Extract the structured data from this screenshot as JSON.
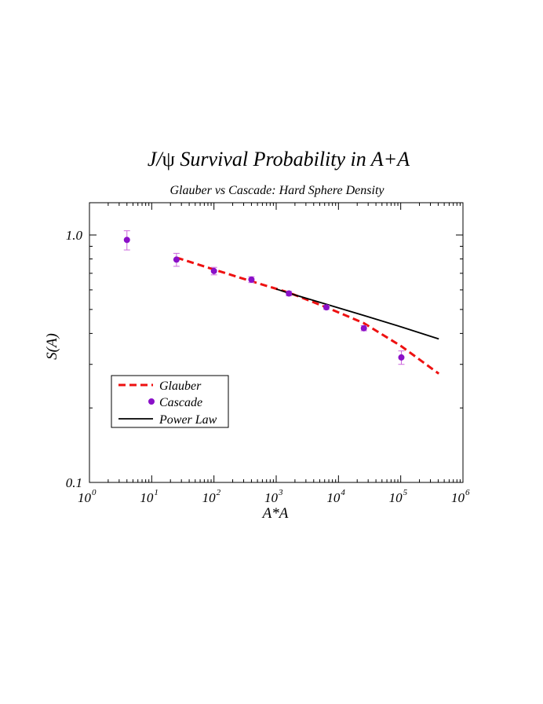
{
  "chart_data": {
    "type": "scatter",
    "title": "J/ψ Survival Probability in A+A",
    "title_main": "J/",
    "title_psi": "ψ",
    "title_rest": " Survival Probability in A+A",
    "subtitle": "Glauber vs Cascade: Hard Sphere Density",
    "xlabel": "A*A",
    "ylabel": "S(A)",
    "x_scale": "log",
    "y_scale": "log",
    "xlim": [
      1,
      1000000
    ],
    "ylim": [
      0.1,
      1.35
    ],
    "x_ticks": [
      {
        "base": "10",
        "exp": "0",
        "value": 1
      },
      {
        "base": "10",
        "exp": "1",
        "value": 10
      },
      {
        "base": "10",
        "exp": "2",
        "value": 100
      },
      {
        "base": "10",
        "exp": "3",
        "value": 1000
      },
      {
        "base": "10",
        "exp": "4",
        "value": 10000
      },
      {
        "base": "10",
        "exp": "5",
        "value": 100000
      },
      {
        "base": "10",
        "exp": "6",
        "value": 1000000
      }
    ],
    "y_ticks": [
      {
        "label": "0.1",
        "value": 0.1
      },
      {
        "label": "1.0",
        "value": 1.0
      }
    ],
    "legend_position": "lower-left",
    "series": [
      {
        "name": "Glauber",
        "kind": "dashed-line",
        "color": "#ee1111",
        "x": [
          25,
          100,
          400,
          1600,
          6400,
          25600,
          102400,
          409600
        ],
        "y": [
          0.81,
          0.725,
          0.65,
          0.585,
          0.51,
          0.44,
          0.355,
          0.275
        ]
      },
      {
        "name": "Cascade",
        "kind": "points",
        "color": "#8a10c8",
        "errcolor": "#cc66dd",
        "x": [
          4,
          25,
          100,
          400,
          1600,
          6400,
          25600,
          102400
        ],
        "y": [
          0.955,
          0.795,
          0.715,
          0.66,
          0.58,
          0.51,
          0.42,
          0.32
        ],
        "err": [
          0.085,
          0.048,
          0.025,
          0.018,
          0.012,
          0.01,
          0.01,
          0.02
        ]
      },
      {
        "name": "Power Law",
        "kind": "solid-line",
        "color": "#000000",
        "x": [
          1000,
          1600,
          6400,
          25600,
          102400,
          409600
        ],
        "y": [
          0.605,
          0.582,
          0.525,
          0.473,
          0.425,
          0.38
        ]
      }
    ]
  }
}
